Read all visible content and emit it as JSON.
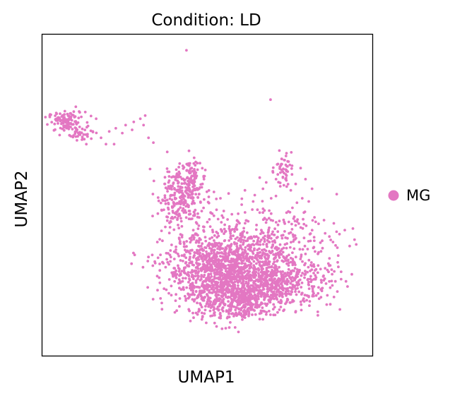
{
  "chart_data": {
    "type": "scatter",
    "title": "Condition: LD",
    "xlabel": "UMAP1",
    "ylabel": "UMAP2",
    "xlim": [
      0,
      100
    ],
    "ylim": [
      0,
      100
    ],
    "grid": false,
    "ticks": false,
    "legend_position": "right",
    "series": [
      {
        "name": "MG",
        "color": "#e377c2",
        "clusters": [
          {
            "cx": 7,
            "cy": 73,
            "sx": 2.8,
            "sy": 1.6,
            "n": 110
          },
          {
            "cx": 12,
            "cy": 69,
            "sx": 2.2,
            "sy": 1.0,
            "n": 30
          },
          {
            "cx": 42,
            "cy": 50,
            "sx": 3.5,
            "sy": 5.0,
            "n": 260
          },
          {
            "cx": 45,
            "cy": 55,
            "sx": 1.5,
            "sy": 3.0,
            "n": 60
          },
          {
            "cx": 56,
            "cy": 27,
            "sx": 9.5,
            "sy": 5.5,
            "n": 1200
          },
          {
            "cx": 58,
            "cy": 17,
            "sx": 7.0,
            "sy": 3.0,
            "n": 400
          },
          {
            "cx": 72,
            "cy": 22,
            "sx": 8.0,
            "sy": 3.5,
            "n": 450
          },
          {
            "cx": 63,
            "cy": 36,
            "sx": 10.0,
            "sy": 5.0,
            "n": 180
          },
          {
            "cx": 73,
            "cy": 58,
            "sx": 1.3,
            "sy": 2.5,
            "n": 45
          },
          {
            "cx": 78,
            "cy": 36,
            "sx": 6.0,
            "sy": 6.0,
            "n": 80
          }
        ],
        "points": [
          [
            43.6,
            95.5
          ],
          [
            69.3,
            80.0
          ],
          [
            31.0,
            75.0
          ],
          [
            29.5,
            74.0
          ],
          [
            27.5,
            73.0
          ],
          [
            22.0,
            71.0
          ],
          [
            33.5,
            66.5
          ],
          [
            20.0,
            70.0
          ],
          [
            15.0,
            70.0
          ],
          [
            21.5,
            66.0
          ],
          [
            72.0,
            64.0
          ],
          [
            73.5,
            61.0
          ],
          [
            74.5,
            59.0
          ],
          [
            74.0,
            56.5
          ],
          [
            71.0,
            55.0
          ],
          [
            68.0,
            54.0
          ],
          [
            66.0,
            55.5
          ],
          [
            80.0,
            55.0
          ],
          [
            81.0,
            48.0
          ],
          [
            76.0,
            46.0
          ],
          [
            69.5,
            49.0
          ],
          [
            64.5,
            50.0
          ],
          [
            60.5,
            47.0
          ],
          [
            84.0,
            41.0
          ],
          [
            86.0,
            38.0
          ],
          [
            89.5,
            38.5
          ],
          [
            92.0,
            39.0
          ],
          [
            94.5,
            39.5
          ],
          [
            95.0,
            36.0
          ],
          [
            95.5,
            34.5
          ],
          [
            93.5,
            34.0
          ],
          [
            90.0,
            31.0
          ],
          [
            84.0,
            32.0
          ],
          [
            87.0,
            28.5
          ],
          [
            80.0,
            31.5
          ],
          [
            55.0,
            45.0
          ],
          [
            52.0,
            43.5
          ],
          [
            49.0,
            40.0
          ],
          [
            47.5,
            43.0
          ],
          [
            50.5,
            47.5
          ],
          [
            57.5,
            44.0
          ],
          [
            62.0,
            42.0
          ],
          [
            66.0,
            44.5
          ],
          [
            70.0,
            42.0
          ],
          [
            73.5,
            41.5
          ],
          [
            77.0,
            40.5
          ],
          [
            79.5,
            44.5
          ],
          [
            75.5,
            51.5
          ],
          [
            70.0,
            38.5
          ],
          [
            66.5,
            39.0
          ],
          [
            46.5,
            57.0
          ],
          [
            48.5,
            53.5
          ],
          [
            44.0,
            59.5
          ],
          [
            40.5,
            58.0
          ],
          [
            39.0,
            52.5
          ],
          [
            38.0,
            46.0
          ],
          [
            52.0,
            51.0
          ],
          [
            54.0,
            49.0
          ],
          [
            56.5,
            50.5
          ],
          [
            61.5,
            51.5
          ],
          [
            64.0,
            48.0
          ],
          [
            67.0,
            52.0
          ],
          [
            57.0,
            10.0
          ],
          [
            61.5,
            11.5
          ],
          [
            54.5,
            8.0
          ],
          [
            59.5,
            7.0
          ],
          [
            64.0,
            14.0
          ],
          [
            68.0,
            12.5
          ],
          [
            72.0,
            14.0
          ],
          [
            76.0,
            16.5
          ],
          [
            81.0,
            18.0
          ],
          [
            84.0,
            21.0
          ],
          [
            88.0,
            23.0
          ],
          [
            86.0,
            27.0
          ],
          [
            82.5,
            25.5
          ],
          [
            40.0,
            27.0
          ],
          [
            41.0,
            31.5
          ],
          [
            40.5,
            24.0
          ],
          [
            42.5,
            20.5
          ],
          [
            44.5,
            18.0
          ],
          [
            48.0,
            15.5
          ],
          [
            51.0,
            12.0
          ],
          [
            47.0,
            12.5
          ],
          [
            50.0,
            16.5
          ],
          [
            53.5,
            14.0
          ],
          [
            17.5,
            68.0
          ],
          [
            19.0,
            66.0
          ],
          [
            13.0,
            66.0
          ],
          [
            16.0,
            74.0
          ],
          [
            11.0,
            76.0
          ],
          [
            25.0,
            72.0
          ],
          [
            27.0,
            70.5
          ],
          [
            24.0,
            69.5
          ],
          [
            30.5,
            72.0
          ],
          [
            32.0,
            68.0
          ],
          [
            79.0,
            49.0
          ],
          [
            82.0,
            52.0
          ],
          [
            77.0,
            53.5
          ],
          [
            78.5,
            58.5
          ],
          [
            70.0,
            57.5
          ]
        ]
      }
    ],
    "legend": [
      {
        "label": "MG",
        "color": "#e377c2"
      }
    ]
  }
}
